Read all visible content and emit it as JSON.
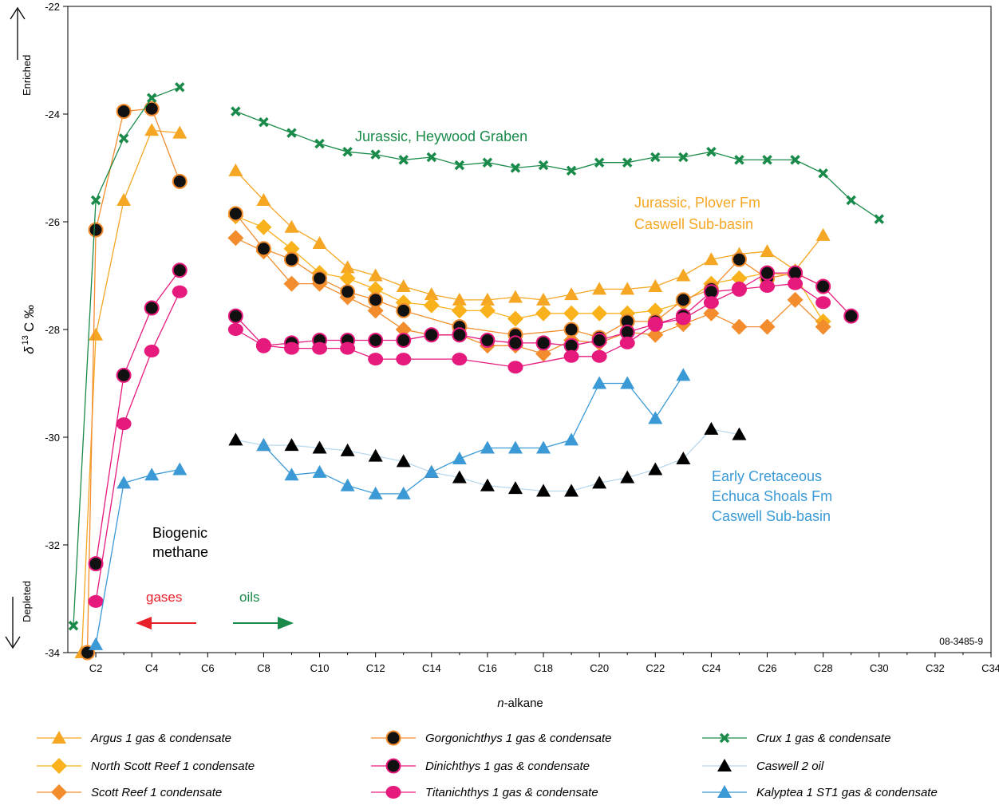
{
  "figure_id": "08-3485-9",
  "chart_data": {
    "type": "line",
    "xlabel_prefix": "n",
    "xlabel_suffix": "-alkane",
    "ylabel": "δ13C ‰",
    "ylabel_delta": "δ",
    "ylabel_sup": "13",
    "ylabel_rest": "C ‰",
    "xlim": [
      1,
      34
    ],
    "ylim": [
      -34,
      -22
    ],
    "x_ticks": [
      2,
      4,
      6,
      8,
      10,
      12,
      14,
      16,
      18,
      20,
      22,
      24,
      26,
      28,
      30,
      32,
      34
    ],
    "x_tick_labels": [
      "C2",
      "C4",
      "C6",
      "C8",
      "C10",
      "C12",
      "C14",
      "C16",
      "C18",
      "C20",
      "C22",
      "C24",
      "C26",
      "C28",
      "C30",
      "C32",
      "C34"
    ],
    "y_ticks": [
      -34,
      -32,
      -30,
      -28,
      -26,
      -24,
      -22
    ],
    "y_tick_labels": [
      "-34",
      "-32",
      "-30",
      "-28",
      "-26",
      "-24",
      "-22"
    ],
    "axis_arrows": {
      "top": "Enriched",
      "bottom": "Depleted"
    },
    "annotations": [
      {
        "text": "Jurassic, Heywood Graben",
        "color": "#1a8a4a"
      },
      {
        "text": "Jurassic, Plover Fm",
        "color": "#f5a623"
      },
      {
        "text": "Caswell Sub-basin",
        "color": "#f5a623"
      },
      {
        "text": "Early Cretaceous",
        "color": "#3b9ad6"
      },
      {
        "text": "Echuca Shoals Fm",
        "color": "#3b9ad6"
      },
      {
        "text": "Caswell Sub-basin",
        "color": "#3b9ad6"
      },
      {
        "text": "Biogenic",
        "color": "#000000"
      },
      {
        "text": "methane",
        "color": "#000000"
      },
      {
        "text": "gases",
        "color": "#e8202a"
      },
      {
        "text": "oils",
        "color": "#1a8a4a"
      }
    ],
    "series": [
      {
        "name": "Argus 1 gas & condensate",
        "color": "#f5a623",
        "marker": "triangle",
        "gas_line": [
          [
            1.5,
            -34
          ],
          [
            2,
            -28.1
          ],
          [
            3,
            -25.6
          ],
          [
            4,
            -24.3
          ],
          [
            5,
            -24.35
          ]
        ],
        "oil_line": [
          [
            7,
            -25.05
          ],
          [
            8,
            -25.6
          ],
          [
            9,
            -26.1
          ],
          [
            10,
            -26.4
          ],
          [
            11,
            -26.85
          ],
          [
            12,
            -27.0
          ],
          [
            13,
            -27.2
          ],
          [
            14,
            -27.35
          ],
          [
            15,
            -27.45
          ],
          [
            16,
            -27.45
          ],
          [
            17,
            -27.4
          ],
          [
            18,
            -27.45
          ],
          [
            19,
            -27.35
          ],
          [
            20,
            -27.25
          ],
          [
            21,
            -27.25
          ],
          [
            22,
            -27.2
          ],
          [
            23,
            -27.0
          ],
          [
            24,
            -26.7
          ],
          [
            25,
            -26.6
          ],
          [
            26,
            -26.55
          ],
          [
            27,
            -26.9
          ],
          [
            28,
            -26.25
          ]
        ]
      },
      {
        "name": "North Scott Reef 1 condensate",
        "color": "#f9b21c",
        "marker": "diamond",
        "gas_line": [],
        "oil_line": [
          [
            7,
            -25.9
          ],
          [
            8,
            -26.1
          ],
          [
            9,
            -26.5
          ],
          [
            10,
            -26.95
          ],
          [
            11,
            -27.05
          ],
          [
            12,
            -27.25
          ],
          [
            13,
            -27.5
          ],
          [
            14,
            -27.55
          ],
          [
            15,
            -27.65
          ],
          [
            16,
            -27.65
          ],
          [
            17,
            -27.8
          ],
          [
            18,
            -27.7
          ],
          [
            19,
            -27.7
          ],
          [
            20,
            -27.7
          ],
          [
            21,
            -27.7
          ],
          [
            22,
            -27.65
          ],
          [
            23,
            -27.5
          ],
          [
            24,
            -27.15
          ],
          [
            25,
            -27.05
          ],
          [
            26,
            -26.95
          ],
          [
            27,
            -27.0
          ],
          [
            28,
            -27.85
          ]
        ]
      },
      {
        "name": "Scott Reef 1 condensate",
        "color": "#f28c2c",
        "marker": "diamond",
        "gas_line": [],
        "oil_line": [
          [
            7,
            -26.3
          ],
          [
            8,
            -26.55
          ],
          [
            9,
            -27.15
          ],
          [
            10,
            -27.15
          ],
          [
            11,
            -27.4
          ],
          [
            12,
            -27.65
          ],
          [
            13,
            -28.0
          ],
          [
            14,
            -28.1
          ],
          [
            15,
            -28.1
          ],
          [
            16,
            -28.3
          ],
          [
            17,
            -28.3
          ],
          [
            18,
            -28.45
          ],
          [
            19,
            -28.2
          ],
          [
            20,
            -28.25
          ],
          [
            21,
            -28.05
          ],
          [
            22,
            -28.1
          ],
          [
            23,
            -27.9
          ],
          [
            24,
            -27.7
          ],
          [
            25,
            -27.95
          ],
          [
            26,
            -27.95
          ],
          [
            27,
            -27.45
          ],
          [
            28,
            -27.95
          ]
        ]
      },
      {
        "name": "Gorgonichthys 1 gas & condensate",
        "color": "#f28c2c",
        "marker": "circle-dark",
        "gas_line": [
          [
            1.7,
            -34
          ],
          [
            2,
            -26.15
          ],
          [
            3,
            -23.95
          ],
          [
            4,
            -23.9
          ],
          [
            5,
            -25.25
          ]
        ],
        "oil_line": [
          [
            7,
            -25.85
          ],
          [
            8,
            -26.5
          ],
          [
            9,
            -26.7
          ],
          [
            10,
            -27.05
          ],
          [
            11,
            -27.3
          ],
          [
            12,
            -27.45
          ],
          [
            13,
            -27.65
          ],
          [
            15,
            -27.95
          ],
          [
            17,
            -28.1
          ],
          [
            19,
            -28.0
          ],
          [
            20,
            -28.15
          ],
          [
            21,
            -27.85
          ],
          [
            22,
            -27.85
          ],
          [
            23,
            -27.45
          ],
          [
            24,
            -27.25
          ],
          [
            25,
            -26.7
          ],
          [
            26,
            -27.05
          ],
          [
            27,
            -26.95
          ],
          [
            28,
            -27.2
          ]
        ]
      },
      {
        "name": "Dinichthys 1 gas & condensate",
        "color": "#e6197d",
        "marker": "circle-dark",
        "gas_line": [
          [
            2,
            -32.35
          ],
          [
            3,
            -28.85
          ],
          [
            4,
            -27.6
          ],
          [
            5,
            -26.9
          ]
        ],
        "oil_line": [
          [
            7,
            -27.75
          ],
          [
            8,
            -28.3
          ],
          [
            9,
            -28.25
          ],
          [
            10,
            -28.2
          ],
          [
            11,
            -28.2
          ],
          [
            12,
            -28.2
          ],
          [
            13,
            -28.2
          ],
          [
            14,
            -28.1
          ],
          [
            15,
            -28.1
          ],
          [
            16,
            -28.2
          ],
          [
            17,
            -28.25
          ],
          [
            18,
            -28.25
          ],
          [
            19,
            -28.3
          ],
          [
            20,
            -28.2
          ],
          [
            21,
            -28.05
          ],
          [
            22,
            -27.9
          ],
          [
            23,
            -27.75
          ],
          [
            24,
            -27.3
          ],
          [
            25,
            -27.25
          ],
          [
            26,
            -26.95
          ],
          [
            27,
            -26.95
          ],
          [
            28,
            -27.2
          ],
          [
            29,
            -27.75
          ]
        ]
      },
      {
        "name": "Titanichthys 1 gas & condensate",
        "color": "#e6197d",
        "marker": "circle",
        "gas_line": [
          [
            2,
            -33.05
          ],
          [
            3,
            -29.75
          ],
          [
            4,
            -28.4
          ],
          [
            5,
            -27.3
          ]
        ],
        "oil_line": [
          [
            7,
            -28.0
          ],
          [
            8,
            -28.3
          ],
          [
            9,
            -28.35
          ],
          [
            10,
            -28.35
          ],
          [
            11,
            -28.35
          ],
          [
            12,
            -28.55
          ],
          [
            13,
            -28.55
          ],
          [
            15,
            -28.55
          ],
          [
            17,
            -28.7
          ],
          [
            19,
            -28.5
          ],
          [
            20,
            -28.5
          ],
          [
            21,
            -28.25
          ],
          [
            22,
            -27.9
          ],
          [
            23,
            -27.8
          ],
          [
            24,
            -27.5
          ],
          [
            25,
            -27.25
          ],
          [
            26,
            -27.2
          ],
          [
            27,
            -27.15
          ],
          [
            28,
            -27.5
          ]
        ]
      },
      {
        "name": "Crux 1 gas & condensate",
        "color": "#1a8a4a",
        "marker": "cross",
        "gas_line": [
          [
            1.2,
            -33.5
          ],
          [
            2,
            -25.6
          ],
          [
            3,
            -24.45
          ],
          [
            4,
            -23.7
          ],
          [
            5,
            -23.5
          ]
        ],
        "oil_line": [
          [
            7,
            -23.95
          ],
          [
            8,
            -24.15
          ],
          [
            9,
            -24.35
          ],
          [
            10,
            -24.55
          ],
          [
            11,
            -24.7
          ],
          [
            12,
            -24.75
          ],
          [
            13,
            -24.85
          ],
          [
            14,
            -24.8
          ],
          [
            15,
            -24.95
          ],
          [
            16,
            -24.9
          ],
          [
            17,
            -25.0
          ],
          [
            18,
            -24.95
          ],
          [
            19,
            -25.05
          ],
          [
            20,
            -24.9
          ],
          [
            21,
            -24.9
          ],
          [
            22,
            -24.8
          ],
          [
            23,
            -24.8
          ],
          [
            24,
            -24.7
          ],
          [
            25,
            -24.85
          ],
          [
            26,
            -24.85
          ],
          [
            27,
            -24.85
          ],
          [
            28,
            -25.1
          ],
          [
            29,
            -25.6
          ],
          [
            30,
            -25.95
          ]
        ]
      },
      {
        "name": "Caswell 2 oil",
        "color": "#000000",
        "line_color": "#b9d8ec",
        "marker": "triangle",
        "gas_line": [],
        "oil_line": [
          [
            7,
            -30.05
          ],
          [
            8,
            -30.15
          ],
          [
            9,
            -30.15
          ],
          [
            10,
            -30.2
          ],
          [
            11,
            -30.25
          ],
          [
            12,
            -30.35
          ],
          [
            13,
            -30.45
          ],
          [
            14,
            -30.65
          ],
          [
            15,
            -30.75
          ],
          [
            16,
            -30.9
          ],
          [
            17,
            -30.95
          ],
          [
            18,
            -31.0
          ],
          [
            19,
            -31.0
          ],
          [
            20,
            -30.85
          ],
          [
            21,
            -30.75
          ],
          [
            22,
            -30.6
          ],
          [
            23,
            -30.4
          ],
          [
            24,
            -29.85
          ],
          [
            25,
            -29.95
          ]
        ]
      },
      {
        "name": "Kalyptea 1 ST1 gas & condensate",
        "color": "#3b9ad6",
        "marker": "triangle",
        "gas_line": [
          [
            2,
            -33.85
          ],
          [
            3,
            -30.85
          ],
          [
            4,
            -30.7
          ],
          [
            5,
            -30.6
          ]
        ],
        "oil_line": [
          [
            8,
            -30.15
          ],
          [
            9,
            -30.7
          ],
          [
            10,
            -30.65
          ],
          [
            11,
            -30.9
          ],
          [
            12,
            -31.05
          ],
          [
            13,
            -31.05
          ],
          [
            14,
            -30.65
          ],
          [
            15,
            -30.4
          ],
          [
            16,
            -30.2
          ],
          [
            17,
            -30.2
          ],
          [
            18,
            -30.2
          ],
          [
            19,
            -30.05
          ],
          [
            20,
            -29.0
          ],
          [
            21,
            -29.0
          ],
          [
            22,
            -29.65
          ],
          [
            23,
            -28.85
          ]
        ]
      }
    ]
  }
}
